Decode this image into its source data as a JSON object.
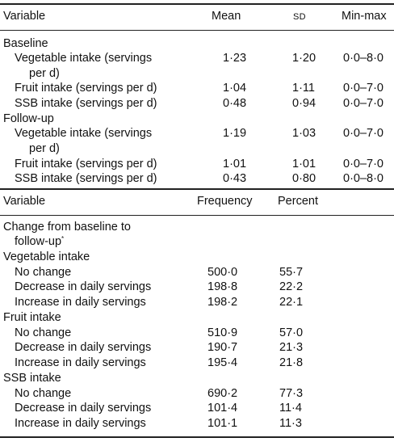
{
  "table1": {
    "headers": {
      "variable": "Variable",
      "mean": "Mean",
      "sd": "SD",
      "minmax": "Min-max"
    },
    "sections": [
      {
        "label": "Baseline",
        "rows": [
          {
            "variable": [
              "Vegetable intake (servings",
              "per d)"
            ],
            "mean": "1·23",
            "sd": "1·20",
            "minmax": "0·0–8·0"
          },
          {
            "variable": [
              "Fruit intake (servings per d)"
            ],
            "mean": "1·04",
            "sd": "1·11",
            "minmax": "0·0–7·0"
          },
          {
            "variable": [
              "SSB intake (servings per d)"
            ],
            "mean": "0·48",
            "sd": "0·94",
            "minmax": "0·0–7·0"
          }
        ]
      },
      {
        "label": "Follow-up",
        "rows": [
          {
            "variable": [
              "Vegetable intake (servings",
              "per d)"
            ],
            "mean": "1·19",
            "sd": "1·03",
            "minmax": "0·0–7·0"
          },
          {
            "variable": [
              "Fruit intake (servings per d)"
            ],
            "mean": "1·01",
            "sd": "1·01",
            "minmax": "0·0–7·0"
          },
          {
            "variable": [
              "SSB intake (servings per d)"
            ],
            "mean": "0·43",
            "sd": "0·80",
            "minmax": "0·0–8·0"
          }
        ]
      }
    ]
  },
  "table2": {
    "headers": {
      "variable": "Variable",
      "frequency": "Frequency",
      "percent": "Percent"
    },
    "intro": [
      "Change from baseline to",
      "follow-up"
    ],
    "intro_marker": "*",
    "sections": [
      {
        "label": "Vegetable intake",
        "rows": [
          {
            "variable": "No change",
            "frequency": "500·0",
            "percent": "55·7"
          },
          {
            "variable": "Decrease in daily servings",
            "frequency": "198·8",
            "percent": "22·2"
          },
          {
            "variable": "Increase in daily servings",
            "frequency": "198·2",
            "percent": "22·1"
          }
        ]
      },
      {
        "label": "Fruit intake",
        "rows": [
          {
            "variable": "No change",
            "frequency": "510·9",
            "percent": "57·0"
          },
          {
            "variable": "Decrease in daily servings",
            "frequency": "190·7",
            "percent": "21·3"
          },
          {
            "variable": "Increase in daily servings",
            "frequency": "195·4",
            "percent": "21·8"
          }
        ]
      },
      {
        "label": "SSB intake",
        "rows": [
          {
            "variable": "No change",
            "frequency": "690·2",
            "percent": "77·3"
          },
          {
            "variable": "Decrease in daily servings",
            "frequency": "101·4",
            "percent": "11·4"
          },
          {
            "variable": "Increase in daily servings",
            "frequency": "101·1",
            "percent": "11·3"
          }
        ]
      }
    ]
  }
}
